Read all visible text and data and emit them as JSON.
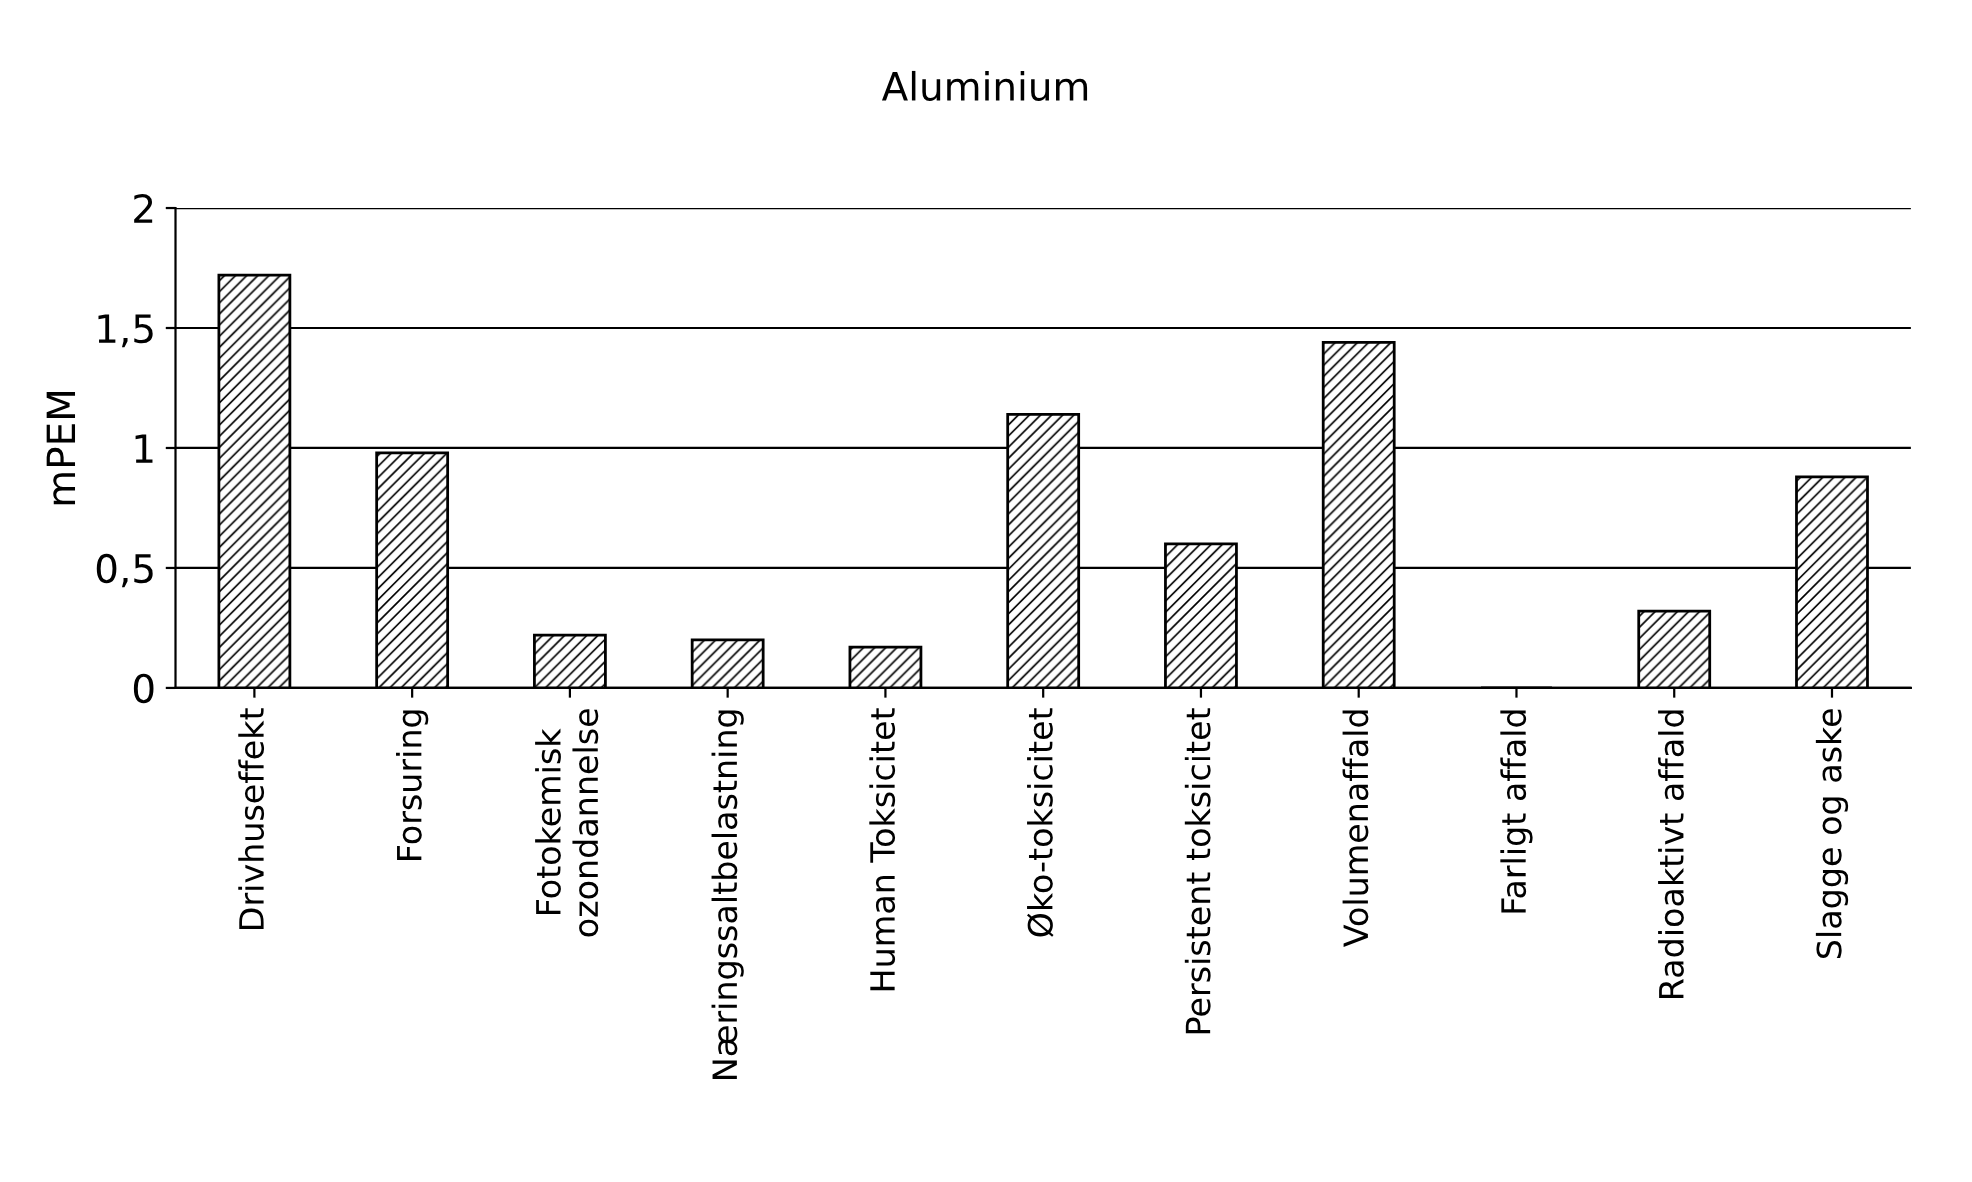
{
  "chart_data": {
    "type": "bar",
    "title": "Aluminium",
    "ylabel": "mPEM",
    "categories": [
      "Drivhuseffekt",
      "Forsuring",
      "Fotokemisk\nozondannelse",
      "Næringssaltbelastning",
      "Human Toksicitet",
      "Øko-toksicitet",
      "Persistent toksicitet",
      "Volumenaffald",
      "Farligt affald",
      "Radioaktivt affald",
      "Slagge og aske"
    ],
    "values": [
      1.72,
      0.98,
      0.22,
      0.2,
      0.17,
      1.14,
      0.6,
      1.44,
      0,
      0.32,
      0.88
    ],
    "ylim": [
      0,
      2
    ],
    "yticks": [
      0,
      {
        "value": 0.5,
        "label": "0,5"
      },
      1,
      {
        "value": 1.5,
        "label": "1,5"
      },
      2
    ],
    "grid": "y",
    "legend": false
  }
}
